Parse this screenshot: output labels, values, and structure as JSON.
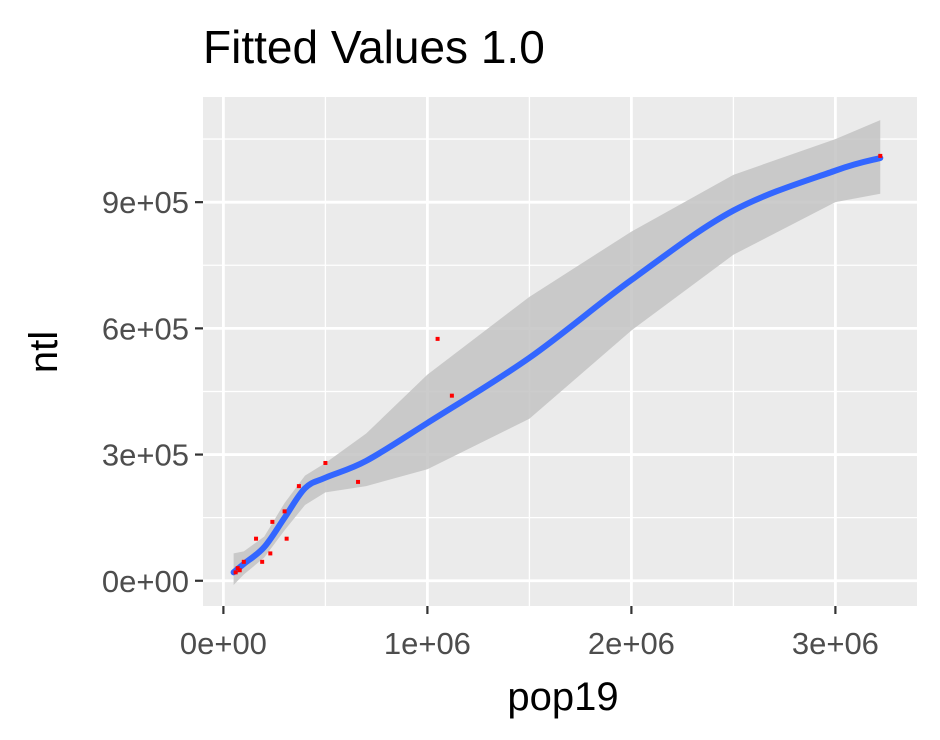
{
  "chart_data": {
    "type": "scatter",
    "title": "Fitted Values 1.0",
    "xlabel": "pop19",
    "ylabel": "ntl",
    "xlim": [
      -100000,
      3400000
    ],
    "ylim": [
      -60000,
      1150000
    ],
    "x_ticks": [
      {
        "value": 0,
        "label": "0e+00"
      },
      {
        "value": 1000000,
        "label": "1e+06"
      },
      {
        "value": 2000000,
        "label": "2e+06"
      },
      {
        "value": 3000000,
        "label": "3e+06"
      }
    ],
    "y_ticks": [
      {
        "value": 0,
        "label": "0e+00"
      },
      {
        "value": 300000,
        "label": "3e+05"
      },
      {
        "value": 600000,
        "label": "6e+05"
      },
      {
        "value": 900000,
        "label": "9e+05"
      }
    ],
    "grid": true,
    "colors": {
      "panel_background": "#ebebeb",
      "grid_major": "#ffffff",
      "points": "#ff0000",
      "smooth_line": "#3366ff",
      "confidence_band": "#c3c3c3"
    },
    "points": [
      {
        "x": 60000,
        "y": 20000
      },
      {
        "x": 70000,
        "y": 30000
      },
      {
        "x": 80000,
        "y": 25000
      },
      {
        "x": 100000,
        "y": 45000
      },
      {
        "x": 160000,
        "y": 100000
      },
      {
        "x": 190000,
        "y": 45000
      },
      {
        "x": 230000,
        "y": 65000
      },
      {
        "x": 240000,
        "y": 140000
      },
      {
        "x": 300000,
        "y": 165000
      },
      {
        "x": 310000,
        "y": 100000
      },
      {
        "x": 370000,
        "y": 225000
      },
      {
        "x": 500000,
        "y": 280000
      },
      {
        "x": 660000,
        "y": 235000
      },
      {
        "x": 1050000,
        "y": 575000
      },
      {
        "x": 1120000,
        "y": 440000
      },
      {
        "x": 3220000,
        "y": 1010000
      }
    ],
    "smooth": [
      {
        "x": 50000,
        "y": 20000,
        "lo": -10000,
        "hi": 65000
      },
      {
        "x": 100000,
        "y": 40000,
        "lo": 15000,
        "hi": 70000
      },
      {
        "x": 200000,
        "y": 80000,
        "lo": 55000,
        "hi": 105000
      },
      {
        "x": 300000,
        "y": 150000,
        "lo": 120000,
        "hi": 185000
      },
      {
        "x": 400000,
        "y": 220000,
        "lo": 180000,
        "hi": 250000
      },
      {
        "x": 500000,
        "y": 245000,
        "lo": 210000,
        "hi": 280000
      },
      {
        "x": 700000,
        "y": 285000,
        "lo": 225000,
        "hi": 350000
      },
      {
        "x": 1000000,
        "y": 375000,
        "lo": 265000,
        "hi": 490000
      },
      {
        "x": 1500000,
        "y": 530000,
        "lo": 385000,
        "hi": 675000
      },
      {
        "x": 2000000,
        "y": 715000,
        "lo": 595000,
        "hi": 830000
      },
      {
        "x": 2500000,
        "y": 880000,
        "lo": 775000,
        "hi": 965000
      },
      {
        "x": 3000000,
        "y": 975000,
        "lo": 900000,
        "hi": 1050000
      },
      {
        "x": 3220000,
        "y": 1005000,
        "lo": 920000,
        "hi": 1095000
      }
    ]
  }
}
